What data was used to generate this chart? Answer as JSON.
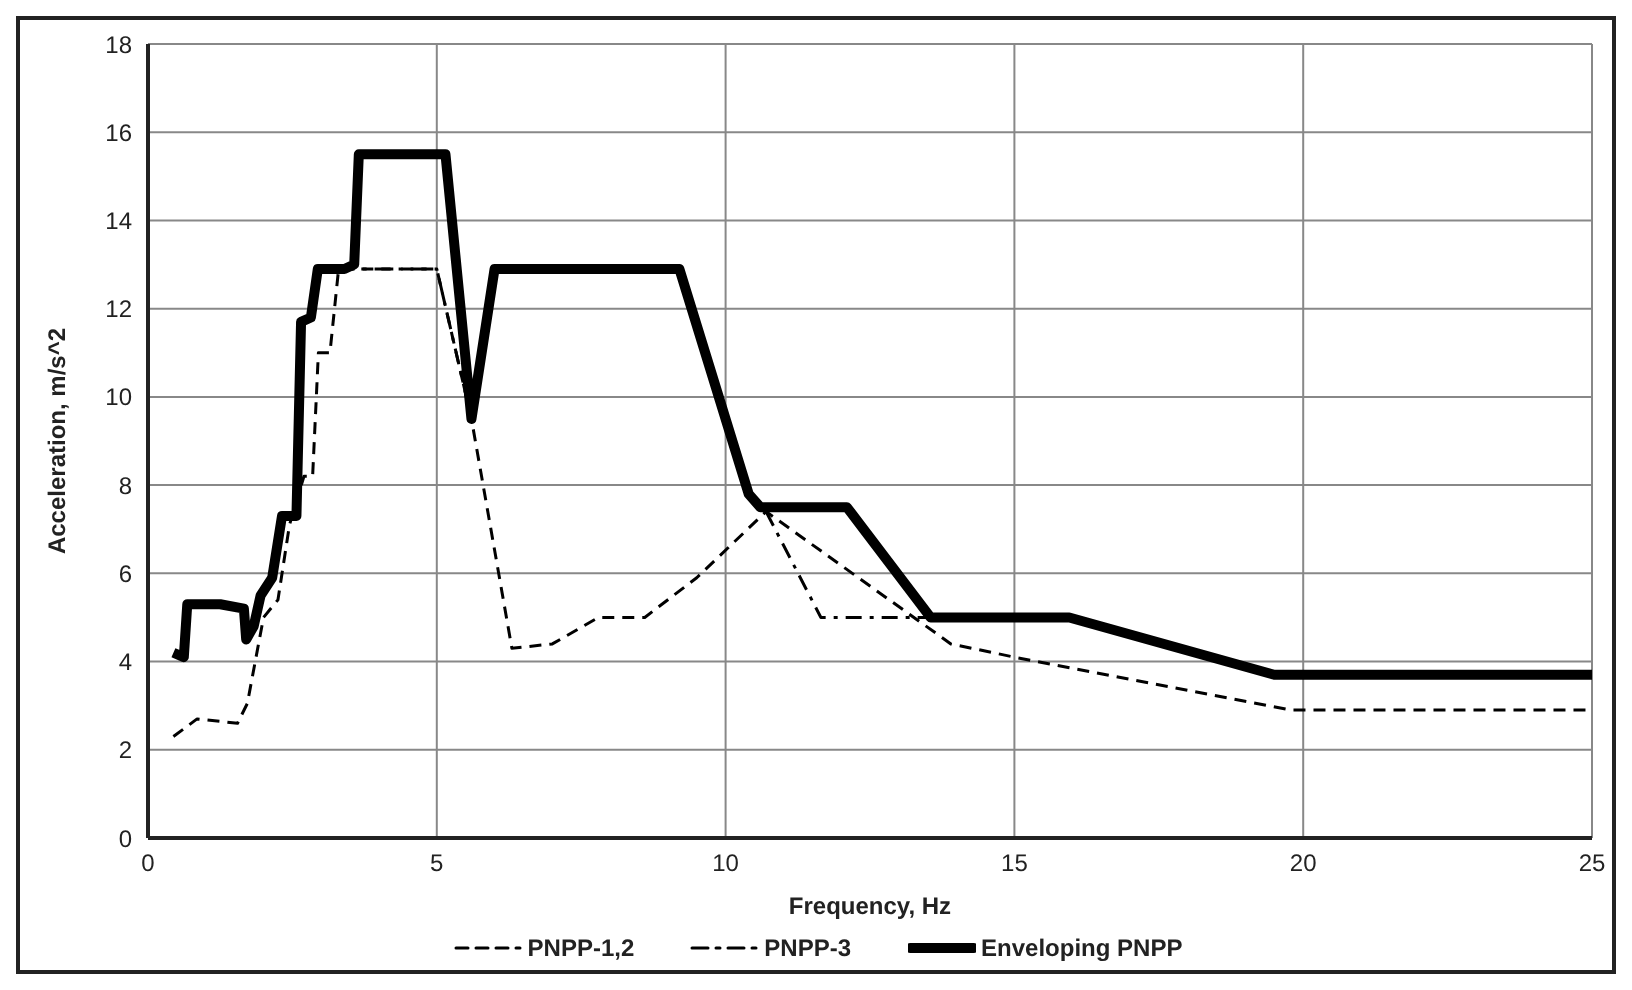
{
  "chart_data": {
    "type": "line",
    "xlabel": "Frequency, Hz",
    "ylabel": "Acceleration, m/s^2",
    "xlim": [
      0,
      25
    ],
    "xticks": [
      0,
      5,
      10,
      15,
      20,
      25
    ],
    "ylim": [
      0,
      18
    ],
    "yticks": [
      0,
      2,
      4,
      6,
      8,
      10,
      12,
      14,
      16,
      18
    ],
    "grid": true,
    "legend": "bottom",
    "marker": "none",
    "series": [
      {
        "name": "PNPP-1,2",
        "color": "#000000",
        "line_style": "dashed",
        "x": [
          0.44,
          0.85,
          1.55,
          1.72,
          2.0,
          2.25,
          2.45,
          2.7,
          2.85,
          2.95,
          3.15,
          3.3,
          5.0,
          5.6,
          6.3,
          7.0,
          7.8,
          8.6,
          9.5,
          10.7,
          13.9,
          15.0,
          19.8,
          25
        ],
        "values": [
          2.3,
          2.7,
          2.6,
          3.05,
          5.0,
          5.4,
          7.1,
          8.2,
          8.2,
          11.0,
          11.0,
          12.9,
          12.9,
          9.5,
          4.3,
          4.4,
          5.0,
          5.0,
          5.9,
          7.4,
          4.4,
          4.1,
          2.9,
          2.9
        ]
      },
      {
        "name": "PNPP-3",
        "color": "#000000",
        "line_style": "dashdot",
        "x": [
          3.3,
          5.0,
          5.6,
          8.0,
          10.7,
          11.65,
          13.55
        ],
        "values": [
          12.9,
          12.9,
          9.5,
          null,
          7.4,
          5.0,
          5.0
        ]
      },
      {
        "name": "Enveloping PNPP",
        "color": "#000000",
        "line_style": "solid",
        "x": [
          0.44,
          0.62,
          0.68,
          1.25,
          1.66,
          1.7,
          1.83,
          1.95,
          2.15,
          2.32,
          2.57,
          2.65,
          2.82,
          2.94,
          3.4,
          3.57,
          3.65,
          5.15,
          5.6,
          6.0,
          9.2,
          10.4,
          10.6,
          12.1,
          13.55,
          15.95,
          19.5,
          25
        ],
        "values": [
          4.2,
          4.1,
          5.3,
          5.3,
          5.2,
          4.5,
          4.8,
          5.5,
          5.9,
          7.3,
          7.3,
          11.7,
          11.8,
          12.9,
          12.9,
          13.0,
          15.5,
          15.5,
          9.5,
          12.9,
          12.9,
          7.8,
          7.5,
          7.5,
          5.0,
          5.0,
          3.7,
          3.7
        ]
      }
    ]
  }
}
